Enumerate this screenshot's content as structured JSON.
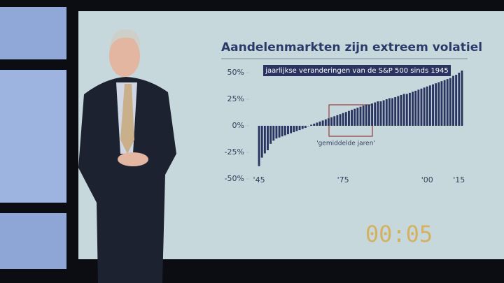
{
  "chart_data": {
    "type": "bar",
    "title": "Aandelenmarkten zijn extreem volatiel",
    "subtitle": "jaarlijkse veranderingen van de S&P 500 sinds 1945",
    "annotation": "'gemiddelde jaren'",
    "timer": "00:05",
    "color": "#2b3461",
    "categories": [
      "'45",
      null,
      null,
      null,
      null,
      null,
      null,
      null,
      null,
      null,
      null,
      null,
      null,
      null,
      null,
      null,
      null,
      null,
      null,
      null,
      null,
      null,
      null,
      null,
      null,
      null,
      null,
      null,
      null,
      "'75",
      null,
      null,
      null,
      null,
      null,
      null,
      null,
      null,
      null,
      null,
      null,
      null,
      null,
      null,
      null,
      null,
      null,
      null,
      null,
      null,
      null,
      null,
      null,
      null,
      null,
      null,
      null,
      null,
      "'00",
      null,
      null,
      null,
      null,
      null,
      null,
      null,
      null,
      null,
      null,
      "'15",
      null
    ],
    "values": [
      -38,
      -30,
      -26,
      -23,
      -17,
      -14,
      -12,
      -11,
      -10,
      -9,
      -8,
      -7,
      -6,
      -5,
      -4,
      -3,
      -2,
      0,
      1,
      2,
      3,
      4,
      5,
      6,
      7,
      8,
      9,
      10,
      11,
      12,
      13,
      14,
      15,
      16,
      17,
      18,
      19,
      20,
      20,
      21,
      22,
      23,
      23,
      24,
      25,
      26,
      26,
      27,
      28,
      29,
      30,
      30,
      31,
      32,
      33,
      34,
      35,
      36,
      37,
      38,
      39,
      40,
      41,
      42,
      43,
      44,
      45,
      47,
      48,
      50,
      52
    ],
    "ylim": [
      -50,
      50
    ],
    "yticks": [
      {
        "value": 50,
        "label": "50%"
      },
      {
        "value": 25,
        "label": "25%"
      },
      {
        "value": 0,
        "label": "0%"
      },
      {
        "value": -25,
        "label": "-25%"
      },
      {
        "value": -50,
        "label": "-50%"
      }
    ]
  }
}
